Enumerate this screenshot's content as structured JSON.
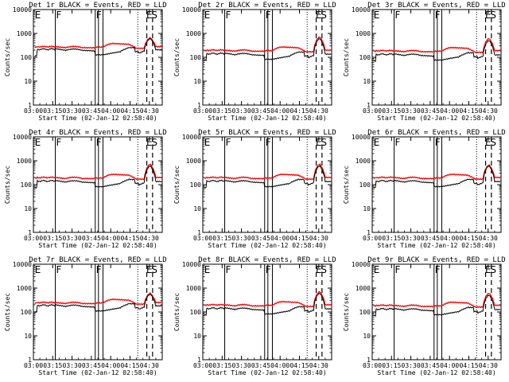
{
  "chart_data": {
    "type": "line",
    "x_ticks": [
      "03:00",
      "03:15",
      "03:30",
      "03:45",
      "04:00",
      "04:15",
      "04:30"
    ],
    "x_label": "Start Time (02-Jan-12 02:58:40)",
    "y_label": "Counts/sec",
    "y_ticks": [
      "1",
      "10",
      "100",
      "1000",
      "10000"
    ],
    "y_scale": "log",
    "ylim": [
      1,
      10000
    ],
    "x_range_minutes_after_0300": [
      0,
      100
    ],
    "series_colors": {
      "events": "#000000",
      "lld": "#ff0000"
    },
    "markers": {
      "flags": [
        {
          "label": "E",
          "t": 0.5
        },
        {
          "label": "F",
          "t": 17
        },
        {
          "label": "F",
          "t": 48
        },
        {
          "label": "E",
          "t": 87
        },
        {
          "label": "S",
          "t": 91
        }
      ],
      "solid_lines": [
        17,
        48,
        50.5,
        54
      ],
      "dotted_lines": [
        81
      ],
      "dashed_lines": [
        88,
        92.5
      ]
    },
    "panels": [
      {
        "title": "Det 1r BLACK = Events, RED = LLD",
        "events_level": 230,
        "lld_level": 280,
        "peak_events": 600,
        "peak_lld": 650
      },
      {
        "title": "Det 2r BLACK = Events, RED = LLD",
        "events_level": 150,
        "lld_level": 200,
        "peak_events": 600,
        "peak_lld": 700
      },
      {
        "title": "Det 3r BLACK = Events, RED = LLD",
        "events_level": 140,
        "lld_level": 190,
        "peak_events": 500,
        "peak_lld": 600
      },
      {
        "title": "Det 4r BLACK = Events, RED = LLD",
        "events_level": 150,
        "lld_level": 200,
        "peak_events": 600,
        "peak_lld": 700
      },
      {
        "title": "Det 5r BLACK = Events, RED = LLD",
        "events_level": 150,
        "lld_level": 200,
        "peak_events": 600,
        "peak_lld": 700
      },
      {
        "title": "Det 6r BLACK = Events, RED = LLD",
        "events_level": 150,
        "lld_level": 200,
        "peak_events": 600,
        "peak_lld": 650
      },
      {
        "title": "Det 7r BLACK = Events, RED = LLD",
        "events_level": 200,
        "lld_level": 250,
        "peak_events": 550,
        "peak_lld": 600
      },
      {
        "title": "Det 8r BLACK = Events, RED = LLD",
        "events_level": 150,
        "lld_level": 200,
        "peak_events": 600,
        "peak_lld": 700
      },
      {
        "title": "Det 9r BLACK = Events, RED = LLD",
        "events_level": 140,
        "lld_level": 190,
        "peak_events": 500,
        "peak_lld": 600
      }
    ]
  }
}
